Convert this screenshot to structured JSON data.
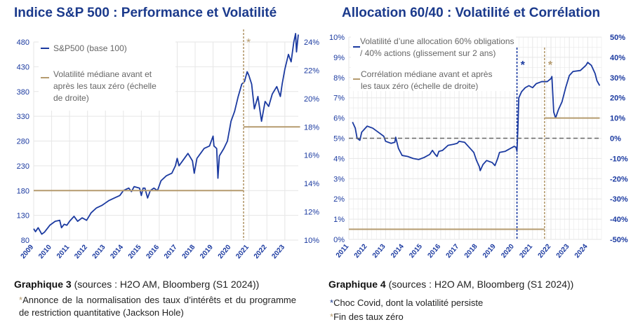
{
  "colors": {
    "navy": "#1b3aa0",
    "beige": "#b59b6f",
    "grid": "#e6e6e6",
    "zero": "#666666"
  },
  "chart_data": [
    {
      "type": "line",
      "title": "Indice S&P 500 : Performance et Volatilité",
      "x_ticks": [
        "2009",
        "2010",
        "2011",
        "2012",
        "2013",
        "2014",
        "2015",
        "2016",
        "2017",
        "2018",
        "2019",
        "2020",
        "2021",
        "2022",
        "2023"
      ],
      "y_left_ticks": [
        "80",
        "130",
        "180",
        "230",
        "280",
        "330",
        "380",
        "430",
        "480"
      ],
      "ylim_left": [
        80,
        480
      ],
      "y_right_ticks": [
        "10%",
        "12%",
        "14%",
        "16%",
        "18%",
        "20%",
        "22%",
        "24%"
      ],
      "ylim_right": [
        10,
        24
      ],
      "grid": true,
      "legend_placement": "top-left",
      "series": [
        {
          "name": "S&P500 (base 100)",
          "axis": "left",
          "points": [
            [
              2009.0,
              103
            ],
            [
              2009.1,
              97
            ],
            [
              2009.25,
              105
            ],
            [
              2009.45,
              92
            ],
            [
              2009.6,
              96
            ],
            [
              2009.9,
              110
            ],
            [
              2010.2,
              118
            ],
            [
              2010.45,
              120
            ],
            [
              2010.55,
              105
            ],
            [
              2010.7,
              112
            ],
            [
              2010.85,
              110
            ],
            [
              2011.0,
              118
            ],
            [
              2011.25,
              128
            ],
            [
              2011.45,
              118
            ],
            [
              2011.7,
              125
            ],
            [
              2011.95,
              120
            ],
            [
              2012.2,
              135
            ],
            [
              2012.5,
              145
            ],
            [
              2012.8,
              150
            ],
            [
              2013.0,
              155
            ],
            [
              2013.2,
              160
            ],
            [
              2013.5,
              165
            ],
            [
              2013.8,
              170
            ],
            [
              2014.0,
              180
            ],
            [
              2014.3,
              185
            ],
            [
              2014.45,
              178
            ],
            [
              2014.6,
              188
            ],
            [
              2014.9,
              185
            ],
            [
              2015.0,
              170
            ],
            [
              2015.1,
              185
            ],
            [
              2015.2,
              185
            ],
            [
              2015.35,
              165
            ],
            [
              2015.5,
              180
            ],
            [
              2015.7,
              185
            ],
            [
              2015.9,
              180
            ],
            [
              2016.1,
              200
            ],
            [
              2016.4,
              210
            ],
            [
              2016.7,
              215
            ],
            [
              2016.9,
              230
            ],
            [
              2017.0,
              245
            ],
            [
              2017.1,
              230
            ],
            [
              2017.3,
              240
            ],
            [
              2017.6,
              255
            ],
            [
              2017.85,
              240
            ],
            [
              2017.95,
              215
            ],
            [
              2018.1,
              245
            ],
            [
              2018.3,
              255
            ],
            [
              2018.5,
              265
            ],
            [
              2018.8,
              270
            ],
            [
              2019.0,
              290
            ],
            [
              2019.05,
              270
            ],
            [
              2019.2,
              265
            ],
            [
              2019.27,
              205
            ],
            [
              2019.35,
              250
            ],
            [
              2019.6,
              265
            ],
            [
              2019.8,
              280
            ],
            [
              2020.0,
              320
            ],
            [
              2020.2,
              340
            ],
            [
              2020.4,
              370
            ],
            [
              2020.6,
              395
            ],
            [
              2020.75,
              400
            ],
            [
              2020.9,
              420
            ],
            [
              2021.0,
              412
            ],
            [
              2021.15,
              395
            ],
            [
              2021.3,
              345
            ],
            [
              2021.5,
              370
            ],
            [
              2021.7,
              320
            ],
            [
              2021.9,
              360
            ],
            [
              2022.1,
              350
            ],
            [
              2022.3,
              375
            ],
            [
              2022.55,
              390
            ],
            [
              2022.75,
              370
            ],
            [
              2022.85,
              395
            ],
            [
              2023.0,
              425
            ],
            [
              2023.2,
              455
            ],
            [
              2023.35,
              440
            ],
            [
              2023.5,
              480
            ],
            [
              2023.6,
              497
            ],
            [
              2023.65,
              460
            ],
            [
              2023.75,
              495
            ]
          ]
        },
        {
          "name": "Volatilité médiane avant et après les taux zéro (échelle de droite)",
          "axis": "right",
          "segments": [
            [
              2009.0,
              2020.7,
              13.5
            ],
            [
              2020.7,
              2023.85,
              18.0
            ]
          ]
        }
      ],
      "vline": {
        "x": 2020.7,
        "marker": "*"
      }
    },
    {
      "type": "line",
      "title": "Allocation 60/40 : Volatilité et Corrélation",
      "x_ticks": [
        "2011",
        "2012",
        "2013",
        "2014",
        "2015",
        "2016",
        "2017",
        "2018",
        "2019",
        "2020",
        "2021",
        "2022",
        "2023",
        "2024"
      ],
      "y_left_ticks": [
        "0%",
        "1%",
        "2%",
        "3%",
        "4%",
        "5%",
        "6%",
        "7%",
        "8%",
        "9%",
        "10%"
      ],
      "ylim_left": [
        0,
        10
      ],
      "y_right_ticks": [
        "-50%",
        "-40%",
        "-30%",
        "-20%",
        "-10%",
        "0%",
        "10%",
        "20%",
        "30%",
        "40%",
        "50%"
      ],
      "ylim_right": [
        -50,
        50
      ],
      "grid": true,
      "legend_placement": "top-left",
      "series": [
        {
          "name": "Volatilité d’une allocation 60% obligations / 40% actions (glissement sur 2 ans)",
          "axis": "left",
          "points": [
            [
              2011.2,
              5.8
            ],
            [
              2011.35,
              5.5
            ],
            [
              2011.45,
              5.0
            ],
            [
              2011.6,
              4.9
            ],
            [
              2011.7,
              5.3
            ],
            [
              2011.85,
              5.45
            ],
            [
              2012.0,
              5.6
            ],
            [
              2012.3,
              5.5
            ],
            [
              2012.6,
              5.3
            ],
            [
              2012.9,
              5.1
            ],
            [
              2013.0,
              4.85
            ],
            [
              2013.3,
              4.75
            ],
            [
              2013.5,
              4.8
            ],
            [
              2013.55,
              5.05
            ],
            [
              2013.7,
              4.5
            ],
            [
              2013.9,
              4.15
            ],
            [
              2014.2,
              4.1
            ],
            [
              2014.5,
              4.0
            ],
            [
              2014.8,
              3.95
            ],
            [
              2015.1,
              4.05
            ],
            [
              2015.4,
              4.2
            ],
            [
              2015.55,
              4.4
            ],
            [
              2015.7,
              4.2
            ],
            [
              2015.8,
              4.1
            ],
            [
              2015.9,
              4.35
            ],
            [
              2016.1,
              4.4
            ],
            [
              2016.4,
              4.65
            ],
            [
              2016.7,
              4.7
            ],
            [
              2016.9,
              4.75
            ],
            [
              2017.0,
              4.85
            ],
            [
              2017.3,
              4.8
            ],
            [
              2017.6,
              4.5
            ],
            [
              2017.8,
              4.3
            ],
            [
              2017.95,
              3.9
            ],
            [
              2018.1,
              3.6
            ],
            [
              2018.15,
              3.4
            ],
            [
              2018.3,
              3.7
            ],
            [
              2018.5,
              3.9
            ],
            [
              2018.8,
              3.8
            ],
            [
              2018.95,
              3.65
            ],
            [
              2019.1,
              4.0
            ],
            [
              2019.2,
              4.3
            ],
            [
              2019.5,
              4.35
            ],
            [
              2019.8,
              4.5
            ],
            [
              2020.0,
              4.6
            ],
            [
              2020.1,
              4.55
            ],
            [
              2020.15,
              4.35
            ],
            [
              2020.2,
              5.5
            ],
            [
              2020.25,
              7.0
            ],
            [
              2020.4,
              7.3
            ],
            [
              2020.6,
              7.5
            ],
            [
              2020.8,
              7.6
            ],
            [
              2021.0,
              7.5
            ],
            [
              2021.2,
              7.7
            ],
            [
              2021.5,
              7.8
            ],
            [
              2021.8,
              7.8
            ],
            [
              2022.0,
              7.95
            ],
            [
              2022.05,
              8.05
            ],
            [
              2022.15,
              6.3
            ],
            [
              2022.25,
              6.0
            ],
            [
              2022.4,
              6.4
            ],
            [
              2022.6,
              6.8
            ],
            [
              2022.8,
              7.5
            ],
            [
              2023.0,
              8.1
            ],
            [
              2023.2,
              8.3
            ],
            [
              2023.6,
              8.35
            ],
            [
              2023.9,
              8.6
            ],
            [
              2024.0,
              8.75
            ],
            [
              2024.2,
              8.6
            ],
            [
              2024.4,
              8.2
            ],
            [
              2024.5,
              7.85
            ],
            [
              2024.65,
              7.6
            ]
          ]
        },
        {
          "name": "Corrélation médiane avant et après les taux zéro (échelle de droite)",
          "axis": "right",
          "segments": [
            [
              2011.0,
              2021.65,
              -45
            ],
            [
              2021.65,
              2024.65,
              10
            ]
          ]
        }
      ],
      "zero_line_right": 0,
      "vlines": [
        {
          "x": 2020.15,
          "marker": "*",
          "color": "navy"
        },
        {
          "x": 2021.65,
          "marker": "*",
          "color": "beige"
        }
      ]
    }
  ],
  "captions": {
    "left": {
      "bold": "Graphique 3",
      "text": " (sources : H2O AM, Bloomberg (S1 2024))",
      "note_star": "*",
      "note": "Annonce de la normalisation des taux d’intérêts et du programme de restriction quantitative (Jackson Hole)"
    },
    "right": {
      "bold": "Graphique 4",
      "text": " (sources : H2O AM, Bloomberg (S1 2024))",
      "note1_star": "*",
      "note1": "Choc Covid, dont la volatilité persiste",
      "note2_star": "*",
      "note2": "Fin des taux zéro"
    }
  }
}
